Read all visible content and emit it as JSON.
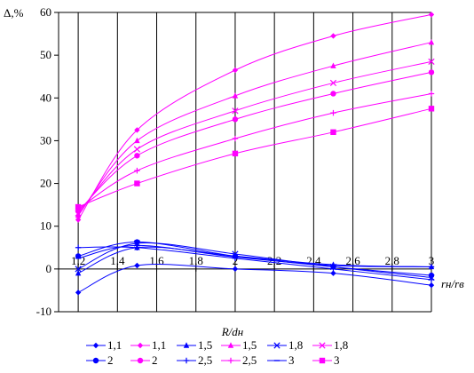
{
  "chart_data": {
    "type": "line",
    "ylabel": "Δ,%",
    "xlabel": "R/dн",
    "xlabel_right": "rн/rв",
    "xlim": [
      1.1,
      3.0
    ],
    "ylim": [
      -10,
      60
    ],
    "xticks": [
      "1,2",
      "1,4",
      "1,6",
      "1,8",
      "2",
      "2,2",
      "2,4",
      "2,6",
      "2,8",
      "3"
    ],
    "yticks": [
      "-10",
      "0",
      "10",
      "20",
      "30",
      "40",
      "50",
      "60"
    ],
    "x": [
      1.2,
      1.5,
      2.0,
      2.5,
      3.0
    ],
    "grid": "vertical",
    "legend_position": "bottom",
    "series": [
      {
        "name": "1,1",
        "color": "#0000ff",
        "marker": "diamond",
        "values": [
          -5.5,
          0.8,
          0.0,
          -1.0,
          -3.8
        ]
      },
      {
        "name": "1,1",
        "color": "#ff00ff",
        "marker": "diamond",
        "values": [
          11.5,
          32.5,
          46.5,
          54.5,
          59.5
        ]
      },
      {
        "name": "1,5",
        "color": "#0000ff",
        "marker": "triangle",
        "values": [
          -1.0,
          5.0,
          3.0,
          1.0,
          0.5
        ]
      },
      {
        "name": "1,5",
        "color": "#ff00ff",
        "marker": "triangle",
        "values": [
          12.5,
          30.0,
          40.5,
          47.5,
          53.0
        ]
      },
      {
        "name": "1,8",
        "color": "#0000ff",
        "marker": "x",
        "values": [
          0.0,
          6.0,
          3.5,
          0.5,
          -2.0
        ]
      },
      {
        "name": "1,8",
        "color": "#ff00ff",
        "marker": "x",
        "values": [
          13.0,
          28.0,
          37.0,
          43.5,
          48.5
        ]
      },
      {
        "name": "2",
        "color": "#0000ff",
        "marker": "circle",
        "values": [
          3.0,
          6.3,
          3.0,
          0.5,
          -1.5
        ]
      },
      {
        "name": "2",
        "color": "#ff00ff",
        "marker": "circle",
        "values": [
          13.5,
          26.5,
          35.0,
          41.0,
          46.0
        ]
      },
      {
        "name": "2,5",
        "color": "#0000ff",
        "marker": "plus",
        "values": [
          5.0,
          5.0,
          2.5,
          0.0,
          -2.5
        ]
      },
      {
        "name": "2,5",
        "color": "#ff00ff",
        "marker": "plus",
        "values": [
          14.0,
          23.0,
          30.5,
          36.5,
          41.0
        ]
      },
      {
        "name": "3",
        "color": "#0000ff",
        "marker": "dash",
        "values": [
          2.5,
          5.5,
          2.8,
          0.8,
          0.5
        ]
      },
      {
        "name": "3",
        "color": "#ff00ff",
        "marker": "square",
        "values": [
          14.5,
          20.0,
          27.0,
          32.0,
          37.5
        ]
      }
    ]
  }
}
